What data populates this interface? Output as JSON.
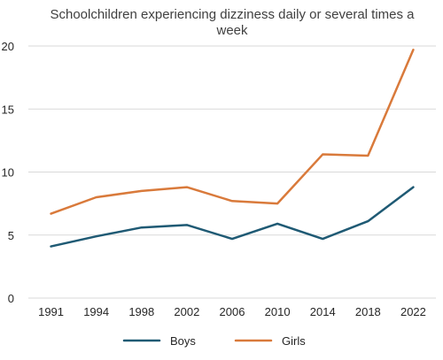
{
  "chart_data": {
    "type": "line",
    "title_lines": [
      "Schoolchildren experiencing dizziness daily or several times a",
      "week"
    ],
    "xlabel": "",
    "ylabel": "",
    "categories": [
      "1991",
      "1994",
      "1998",
      "2002",
      "2006",
      "2010",
      "2014",
      "2018",
      "2022"
    ],
    "ylim": [
      0,
      20
    ],
    "yticks": [
      0,
      5,
      10,
      15,
      20
    ],
    "grid": "horizontal",
    "legend_position": "bottom",
    "series": [
      {
        "name": "Boys",
        "color": "#1f5a74",
        "values": [
          4.1,
          4.9,
          5.6,
          5.8,
          4.7,
          5.9,
          4.7,
          6.1,
          8.8
        ]
      },
      {
        "name": "Girls",
        "color": "#d97a3b",
        "values": [
          6.7,
          8.0,
          8.5,
          8.8,
          7.7,
          7.5,
          11.4,
          11.3,
          19.7
        ]
      }
    ]
  }
}
